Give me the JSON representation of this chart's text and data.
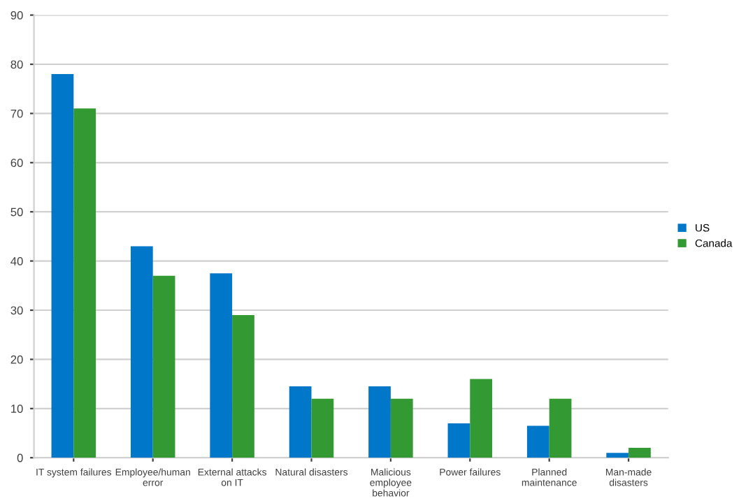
{
  "chart_data": {
    "type": "bar",
    "categories": [
      "IT system failures",
      "Employee/human\nerror",
      "External attacks\non IT",
      "Natural disasters",
      "Malicious\nemployee\nbehavior",
      "Power failures",
      "Planned\nmaintenance",
      "Man-made\ndisasters"
    ],
    "series": [
      {
        "name": "US",
        "color": "#0077c8",
        "values": [
          78,
          43,
          37.5,
          14.5,
          14.5,
          7,
          6.5,
          1
        ]
      },
      {
        "name": "Canada",
        "color": "#339933",
        "values": [
          71,
          37,
          29,
          12,
          12,
          16,
          12,
          2
        ]
      }
    ],
    "ylim": [
      0,
      90
    ],
    "yticks": [
      0,
      10,
      20,
      30,
      40,
      50,
      60,
      70,
      80,
      90
    ],
    "grid": "y",
    "legend": "right"
  }
}
